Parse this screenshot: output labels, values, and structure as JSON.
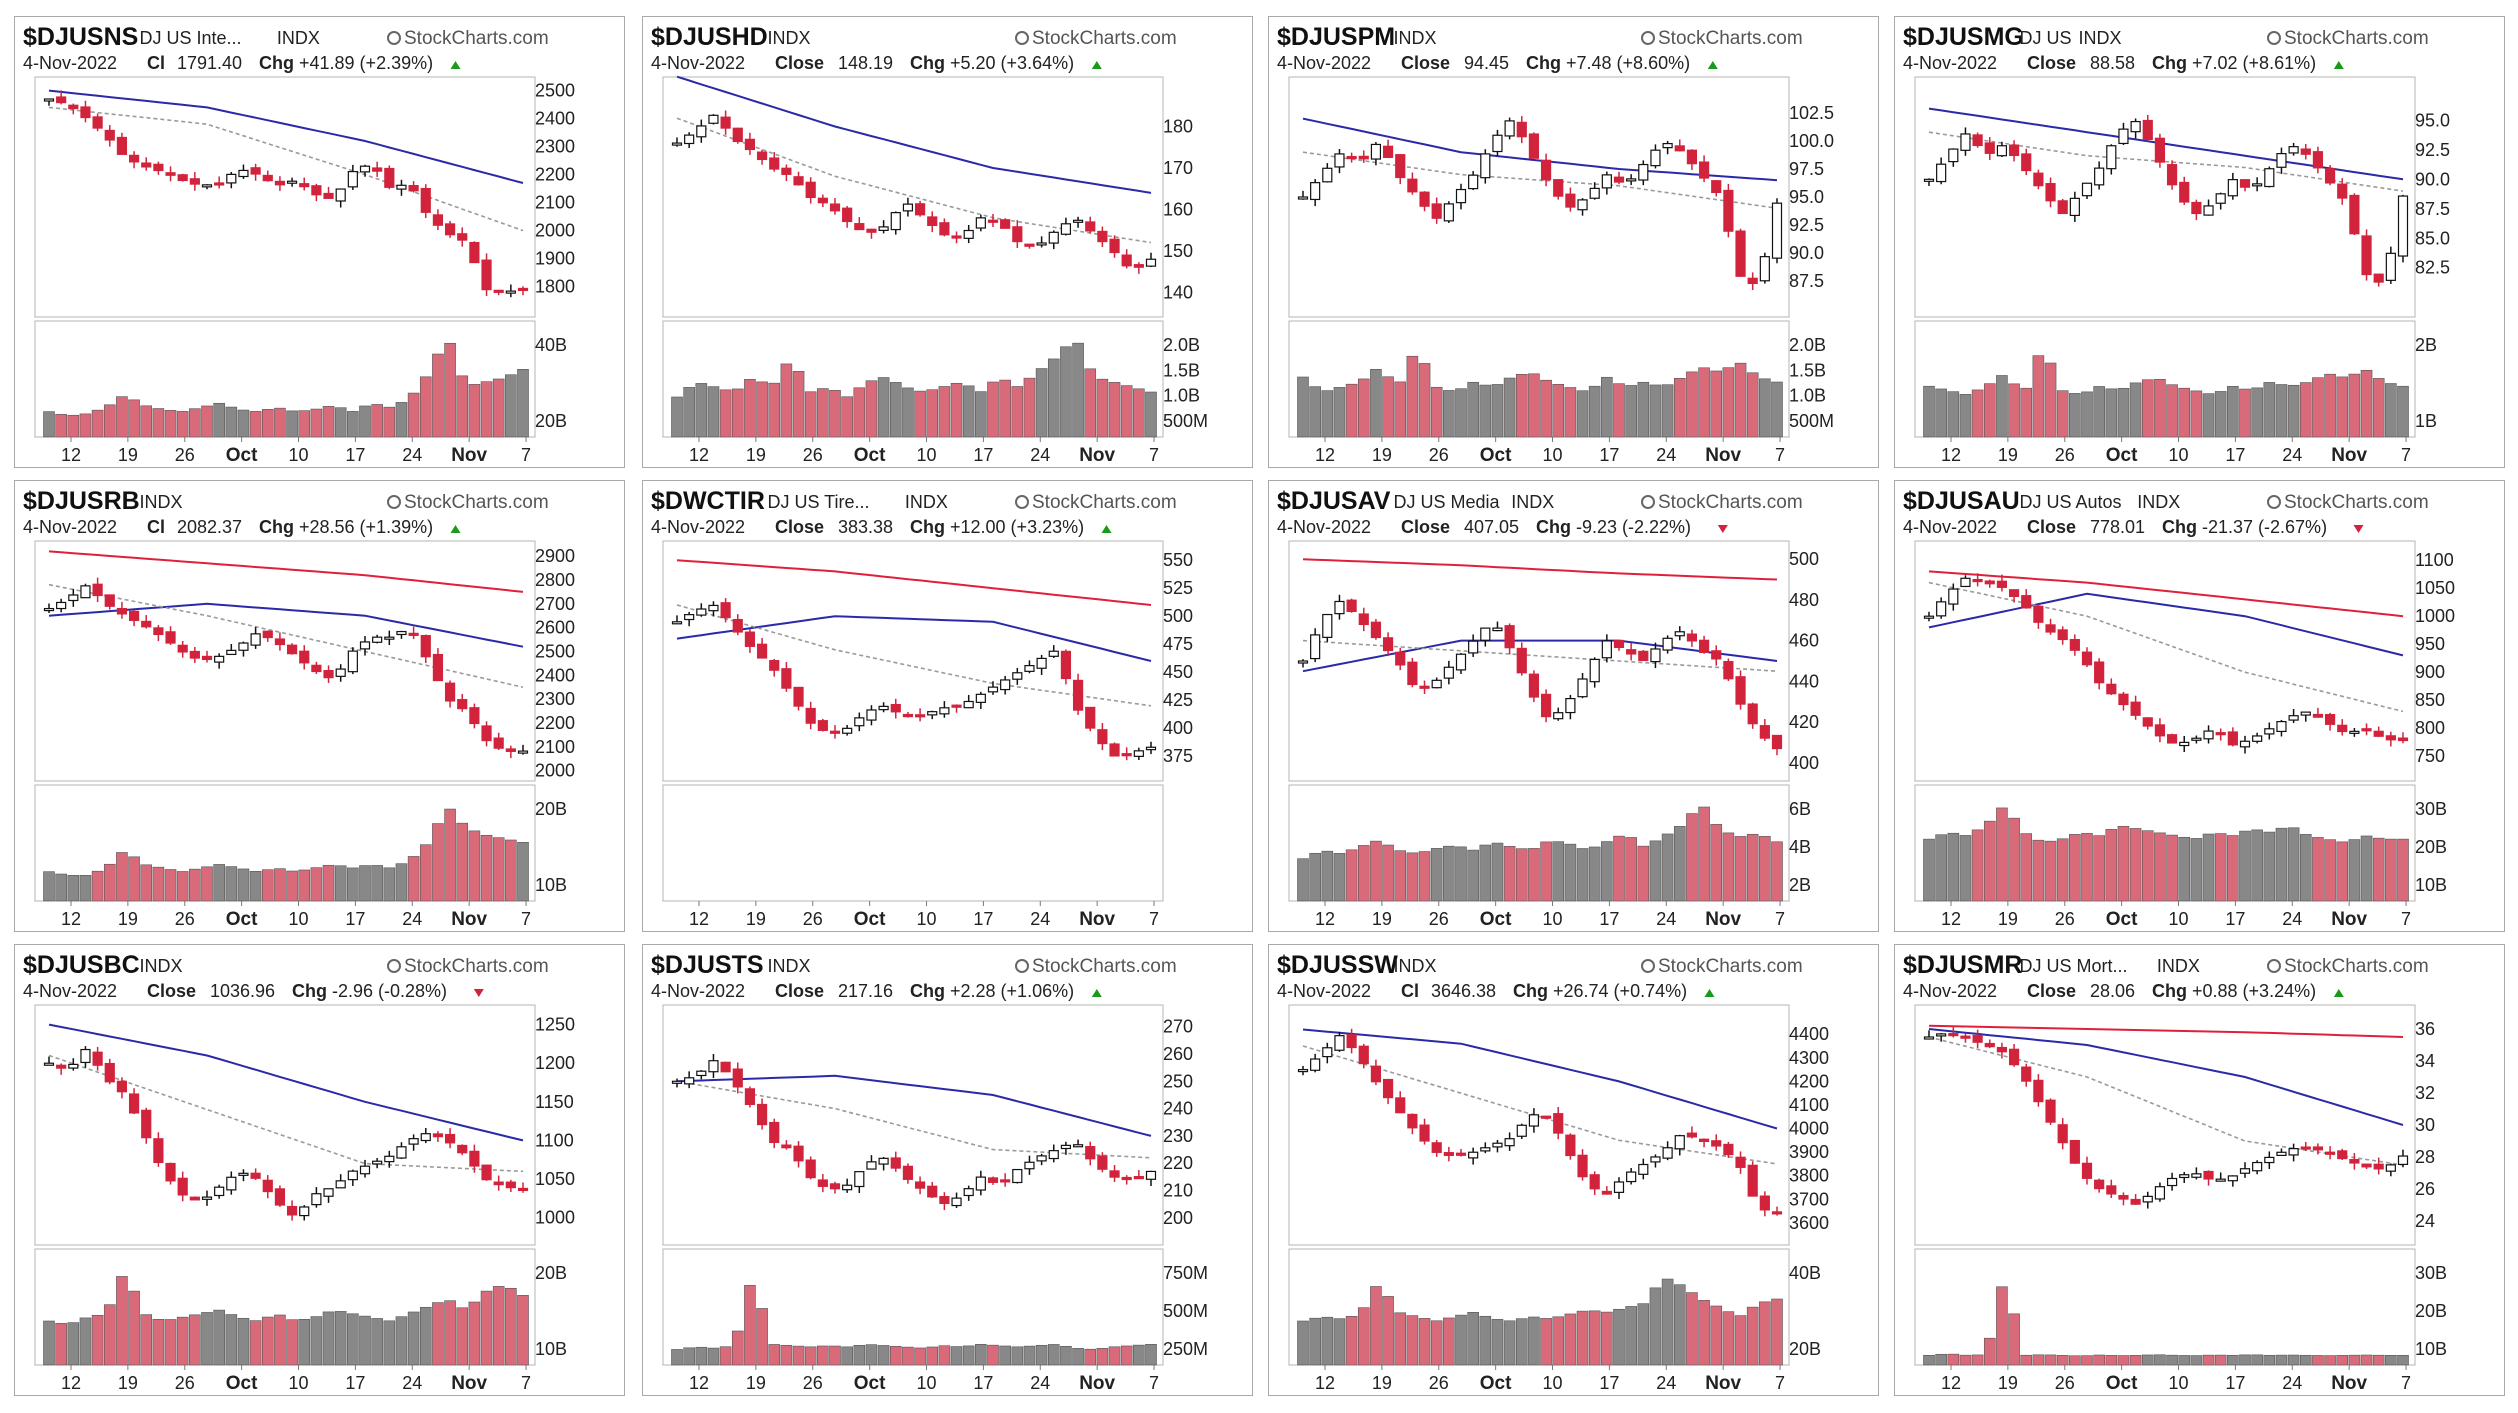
{
  "brand": "StockCharts.com",
  "colors": {
    "up": "#ffffff",
    "down": "#d2233c",
    "upVol": "#888888",
    "downVol": "#d96a7a",
    "sma50": "#2a2aa8",
    "sma200": "#e0203a",
    "ema": "#9a9a9a"
  },
  "chart_data": [
    {
      "type": "candlestick",
      "symbol": "$DJUSNS",
      "name": "DJ US Inte...",
      "exchange": "INDX",
      "date": "4-Nov-2022",
      "closeLabel": "Cl",
      "close": "1791.40",
      "change": "+41.89 (+2.39%)",
      "dir": "up",
      "ylim": [
        1720,
        2520
      ],
      "yticks": [
        "2500",
        "2400",
        "2300",
        "2200",
        "2100",
        "2000",
        "1900",
        "1800"
      ],
      "volTicks": [
        "40B",
        "20B"
      ],
      "volMax": 52,
      "xticks": [
        "12",
        "19",
        "26",
        "Oct",
        "10",
        "17",
        "24",
        "Nov",
        "7"
      ],
      "sma50": [
        2500,
        2440,
        2320,
        2170
      ],
      "sma200": null,
      "ema": [
        2440,
        2380,
        2200,
        2000
      ],
      "path": [
        2470,
        2450,
        2400,
        2340,
        2260,
        2230,
        2210,
        2180,
        2160,
        2170,
        2220,
        2200,
        2160,
        2180,
        2130,
        2110,
        2210,
        2240,
        2150,
        2170,
        2050,
        1990,
        1960,
        1790,
        1780,
        1791
      ],
      "vol": [
        12,
        10,
        11,
        14,
        20,
        15,
        13,
        12,
        14,
        16,
        13,
        12,
        14,
        12,
        13,
        15,
        12,
        16,
        14,
        18,
        30,
        48,
        24,
        26,
        28,
        32
      ]
    },
    {
      "type": "candlestick",
      "symbol": "$DJUSHD",
      "name": "",
      "exchange": "INDX",
      "date": "4-Nov-2022",
      "closeLabel": "Close",
      "close": "148.19",
      "change": "+5.20 (+3.64%)",
      "dir": "up",
      "ylim": [
        136,
        190
      ],
      "yticks": [
        "180",
        "170",
        "160",
        "150",
        "140"
      ],
      "volTicks": [
        "2.0B",
        "1.5B",
        "1.0B",
        "500M"
      ],
      "volMax": 2.2,
      "xticks": [
        "12",
        "19",
        "26",
        "Oct",
        "10",
        "17",
        "24",
        "Nov",
        "7"
      ],
      "sma50": [
        192,
        180,
        170,
        164
      ],
      "sma200": null,
      "ema": [
        182,
        168,
        158,
        152
      ],
      "path": [
        176,
        179,
        183,
        177,
        174,
        170,
        168,
        163,
        161,
        157,
        154,
        156,
        162,
        158,
        154,
        153,
        158,
        157,
        152,
        151,
        155,
        158,
        154,
        150,
        145,
        148
      ],
      "vol": [
        0.8,
        1.1,
        1.0,
        0.9,
        1.2,
        1.0,
        1.6,
        0.9,
        1.0,
        0.8,
        1.1,
        1.2,
        1.0,
        0.9,
        1.0,
        1.1,
        0.9,
        1.2,
        1.0,
        1.3,
        1.6,
        2.0,
        1.2,
        1.1,
        1.0,
        0.9
      ]
    },
    {
      "type": "candlestick",
      "symbol": "$DJUSPM",
      "name": "",
      "exchange": "INDX",
      "date": "4-Nov-2022",
      "closeLabel": "Close",
      "close": "94.45",
      "change": "+7.48 (+8.60%)",
      "dir": "up",
      "ylim": [
        85,
        105
      ],
      "yticks": [
        "102.5",
        "100.0",
        "97.5",
        "95.0",
        "92.5",
        "90.0",
        "87.5"
      ],
      "volTicks": [
        "2.0B",
        "1.5B",
        "1.0B",
        "500M"
      ],
      "volMax": 2.2,
      "xticks": [
        "12",
        "19",
        "26",
        "Oct",
        "10",
        "17",
        "24",
        "Nov",
        "7"
      ],
      "sma50": [
        102,
        99,
        97.5,
        96.5
      ],
      "sma200": null,
      "ema": [
        99,
        97,
        96,
        94
      ],
      "path": [
        95,
        97,
        99,
        98,
        100,
        97,
        95,
        93,
        95,
        97,
        100,
        102,
        99,
        96,
        94,
        95,
        97,
        96,
        98,
        100,
        99,
        97,
        95,
        88,
        87,
        94.45
      ],
      "vol": [
        1.2,
        0.9,
        1.0,
        1.1,
        1.4,
        1.0,
        1.8,
        1.0,
        0.9,
        1.1,
        1.0,
        1.2,
        1.3,
        1.1,
        1.0,
        0.9,
        1.2,
        1.0,
        1.1,
        1.0,
        1.2,
        1.4,
        1.3,
        1.5,
        1.2,
        1.1
      ]
    },
    {
      "type": "candlestick",
      "symbol": "$DJUSMG",
      "name": "DJ US",
      "exchange": "INDX",
      "date": "4-Nov-2022",
      "closeLabel": "Close",
      "close": "88.58",
      "change": "+7.02 (+8.61%)",
      "dir": "up",
      "ylim": [
        79,
        98
      ],
      "yticks": [
        "95.0",
        "92.5",
        "90.0",
        "87.5",
        "85.0",
        "82.5"
      ],
      "volTicks": [
        "2B",
        "1B"
      ],
      "volMax": 2.6,
      "xticks": [
        "12",
        "19",
        "26",
        "Oct",
        "10",
        "17",
        "24",
        "Nov",
        "7"
      ],
      "sma50": [
        96,
        94,
        92,
        90
      ],
      "sma200": null,
      "ema": [
        94,
        92,
        91,
        89
      ],
      "path": [
        90,
        92,
        94,
        92,
        93,
        91,
        89,
        87,
        89,
        91,
        94,
        95,
        92,
        89,
        87,
        88,
        90,
        89,
        91,
        93,
        92,
        90,
        88,
        82,
        81,
        88.58
      ],
      "vol": [
        1.2,
        1.1,
        1.0,
        1.2,
        1.5,
        1.0,
        2.2,
        1.1,
        1.0,
        1.2,
        1.1,
        1.3,
        1.4,
        1.2,
        1.1,
        1.0,
        1.2,
        1.1,
        1.3,
        1.2,
        1.3,
        1.5,
        1.4,
        1.6,
        1.3,
        1.2
      ]
    },
    {
      "type": "candlestick",
      "symbol": "$DJUSRB",
      "name": "",
      "exchange": "INDX",
      "date": "4-Nov-2022",
      "closeLabel": "Cl",
      "close": "2082.37",
      "change": "+28.56 (+1.39%)",
      "dir": "up",
      "ylim": [
        1990,
        2930
      ],
      "yticks": [
        "2900",
        "2800",
        "2700",
        "2600",
        "2500",
        "2400",
        "2300",
        "2200",
        "2100",
        "2000"
      ],
      "volTicks": [
        "20B",
        "10B"
      ],
      "volMax": 30,
      "xticks": [
        "12",
        "19",
        "26",
        "Oct",
        "10",
        "17",
        "24",
        "Nov",
        "7"
      ],
      "sma50": [
        2650,
        2700,
        2650,
        2520
      ],
      "sma200": [
        2920,
        2870,
        2820,
        2750
      ],
      "ema": [
        2780,
        2650,
        2500,
        2350
      ],
      "path": [
        2680,
        2720,
        2780,
        2700,
        2650,
        2610,
        2560,
        2500,
        2460,
        2480,
        2520,
        2580,
        2540,
        2480,
        2420,
        2380,
        2500,
        2560,
        2560,
        2600,
        2460,
        2300,
        2250,
        2130,
        2080,
        2082
      ],
      "vol": [
        8,
        7,
        7,
        9,
        14,
        10,
        9,
        8,
        9,
        10,
        9,
        8,
        9,
        8,
        9,
        10,
        9,
        10,
        9,
        11,
        16,
        26,
        20,
        18,
        17,
        16
      ]
    },
    {
      "type": "candlestick",
      "symbol": "$DWCTIR",
      "name": "DJ US Tire...",
      "exchange": "INDX",
      "date": "4-Nov-2022",
      "closeLabel": "Close",
      "close": "383.38",
      "change": "+12.00 (+3.23%)",
      "dir": "up",
      "ylim": [
        360,
        560
      ],
      "yticks": [
        "550",
        "525",
        "500",
        "475",
        "450",
        "425",
        "400",
        "375"
      ],
      "volTicks": [],
      "volMax": 1,
      "xticks": [
        "12",
        "19",
        "26",
        "Oct",
        "10",
        "17",
        "24",
        "Nov",
        "7"
      ],
      "sma50": [
        480,
        500,
        495,
        460
      ],
      "sma200": [
        550,
        540,
        525,
        510
      ],
      "ema": [
        510,
        470,
        440,
        420
      ],
      "path": [
        495,
        505,
        510,
        490,
        470,
        455,
        430,
        405,
        395,
        400,
        415,
        420,
        410,
        412,
        418,
        420,
        430,
        440,
        450,
        460,
        470,
        420,
        395,
        375,
        378,
        383
      ],
      "vol": []
    },
    {
      "type": "candlestick",
      "symbol": "$DJUSAV",
      "name": "DJ US Media",
      "exchange": "INDX",
      "date": "4-Nov-2022",
      "closeLabel": "Close",
      "close": "407.05",
      "change": "-9.23 (-2.22%)",
      "dir": "down",
      "ylim": [
        395,
        505
      ],
      "yticks": [
        "500",
        "480",
        "460",
        "440",
        "420",
        "400"
      ],
      "volTicks": [
        "6B",
        "4B",
        "2B"
      ],
      "volMax": 6.5,
      "xticks": [
        "12",
        "19",
        "26",
        "Oct",
        "10",
        "17",
        "24",
        "Nov",
        "7"
      ],
      "sma50": [
        445,
        460,
        460,
        450
      ],
      "sma200": [
        500,
        497,
        493,
        490
      ],
      "ema": [
        460,
        455,
        450,
        445
      ],
      "path": [
        450,
        470,
        480,
        470,
        460,
        450,
        435,
        440,
        450,
        460,
        470,
        455,
        435,
        420,
        430,
        445,
        460,
        455,
        450,
        460,
        465,
        455,
        450,
        430,
        415,
        407
      ],
      "vol": [
        2.5,
        3,
        2.8,
        3.2,
        3.6,
        3,
        2.8,
        3.1,
        3.3,
        3,
        3.5,
        3.2,
        3,
        3.6,
        3.4,
        3,
        3.5,
        4,
        3.2,
        3.8,
        4.5,
        5.8,
        4.2,
        3.8,
        4,
        3.5
      ]
    },
    {
      "type": "candlestick",
      "symbol": "$DJUSAU",
      "name": "DJ US Autos",
      "exchange": "INDX",
      "date": "4-Nov-2022",
      "closeLabel": "Close",
      "close": "778.01",
      "change": "-21.37 (-2.67%)",
      "dir": "down",
      "ylim": [
        720,
        1120
      ],
      "yticks": [
        "1100",
        "1050",
        "1000",
        "950",
        "900",
        "850",
        "800",
        "750"
      ],
      "volTicks": [
        "30B",
        "20B",
        "10B"
      ],
      "volMax": 32,
      "xticks": [
        "12",
        "19",
        "26",
        "Oct",
        "10",
        "17",
        "24",
        "Nov",
        "7"
      ],
      "sma50": [
        980,
        1040,
        1000,
        930
      ],
      "sma200": [
        1080,
        1060,
        1030,
        1000
      ],
      "ema": [
        1060,
        1000,
        900,
        830
      ],
      "path": [
        1000,
        1040,
        1070,
        1060,
        1050,
        1020,
        980,
        960,
        930,
        880,
        850,
        820,
        790,
        770,
        780,
        800,
        770,
        780,
        800,
        820,
        830,
        810,
        790,
        800,
        780,
        778
      ],
      "vol": [
        18,
        20,
        19,
        22,
        28,
        20,
        17,
        18,
        20,
        19,
        22,
        21,
        20,
        19,
        18,
        20,
        19,
        21,
        20,
        22,
        19,
        18,
        17,
        19,
        18,
        18
      ]
    },
    {
      "type": "candlestick",
      "symbol": "$DJUSBC",
      "name": "",
      "exchange": "INDX",
      "date": "4-Nov-2022",
      "closeLabel": "Close",
      "close": "1036.96",
      "change": "-2.96 (-0.28%)",
      "dir": "down",
      "ylim": [
        975,
        1265
      ],
      "yticks": [
        "1250",
        "1200",
        "1150",
        "1100",
        "1050",
        "1000"
      ],
      "volTicks": [
        "20B",
        "10B"
      ],
      "volMax": 30,
      "xticks": [
        "12",
        "19",
        "26",
        "Oct",
        "10",
        "17",
        "24",
        "Nov",
        "7"
      ],
      "sma50": [
        1250,
        1210,
        1150,
        1100
      ],
      "sma200": null,
      "ema": [
        1210,
        1140,
        1070,
        1060
      ],
      "path": [
        1200,
        1190,
        1220,
        1180,
        1160,
        1110,
        1060,
        1030,
        1020,
        1040,
        1060,
        1050,
        1020,
        1000,
        1030,
        1040,
        1060,
        1070,
        1080,
        1100,
        1110,
        1100,
        1080,
        1050,
        1040,
        1037
      ],
      "vol": [
        12,
        11,
        13,
        14,
        26,
        14,
        12,
        13,
        14,
        15,
        13,
        12,
        14,
        12,
        13,
        15,
        14,
        13,
        12,
        14,
        16,
        18,
        15,
        20,
        22,
        19
      ]
    },
    {
      "type": "candlestick",
      "symbol": "$DJUSTS",
      "name": "",
      "exchange": "INDX",
      "date": "4-Nov-2022",
      "closeLabel": "Close",
      "close": "217.16",
      "change": "+2.28 (+1.06%)",
      "dir": "up",
      "ylim": [
        193,
        275
      ],
      "yticks": [
        "270",
        "260",
        "250",
        "240",
        "230",
        "220",
        "210",
        "200"
      ],
      "volTicks": [
        "750M",
        "500M",
        "250M"
      ],
      "volMax": 850,
      "xticks": [
        "12",
        "19",
        "26",
        "Oct",
        "10",
        "17",
        "24",
        "Nov",
        "7"
      ],
      "sma50": [
        250,
        252,
        245,
        230
      ],
      "sma200": null,
      "ema": [
        250,
        240,
        225,
        222
      ],
      "path": [
        250,
        252,
        258,
        250,
        240,
        228,
        225,
        215,
        210,
        212,
        220,
        222,
        215,
        210,
        205,
        208,
        215,
        212,
        218,
        222,
        225,
        228,
        220,
        215,
        214,
        217
      ],
      "vol": [
        120,
        140,
        130,
        150,
        700,
        160,
        150,
        140,
        150,
        140,
        160,
        150,
        140,
        130,
        150,
        140,
        160,
        150,
        140,
        150,
        160,
        130,
        120,
        140,
        150,
        160
      ]
    },
    {
      "type": "candlestick",
      "symbol": "$DJUSSW",
      "name": "",
      "exchange": "INDX",
      "date": "4-Nov-2022",
      "closeLabel": "Cl",
      "close": "3646.38",
      "change": "+26.74 (+0.74%)",
      "dir": "up",
      "ylim": [
        3540,
        4490
      ],
      "yticks": [
        "4400",
        "4300",
        "4200",
        "4100",
        "4000",
        "3900",
        "3800",
        "3700",
        "3600"
      ],
      "volTicks": [
        "40B",
        "20B"
      ],
      "volMax": 50,
      "xticks": [
        "12",
        "19",
        "26",
        "Oct",
        "10",
        "17",
        "24",
        "Nov",
        "7"
      ],
      "sma50": [
        4420,
        4360,
        4200,
        4000
      ],
      "sma200": null,
      "ema": [
        4350,
        4150,
        3950,
        3850
      ],
      "path": [
        4250,
        4320,
        4400,
        4300,
        4180,
        4080,
        3980,
        3900,
        3880,
        3900,
        3930,
        3960,
        4060,
        4050,
        3900,
        3760,
        3720,
        3800,
        3850,
        3900,
        3980,
        3950,
        3920,
        3850,
        3660,
        3646
      ],
      "vol": [
        20,
        22,
        21,
        23,
        38,
        24,
        22,
        20,
        22,
        24,
        21,
        20,
        22,
        21,
        23,
        25,
        24,
        26,
        28,
        40,
        36,
        30,
        26,
        22,
        28,
        30
      ]
    },
    {
      "type": "candlestick",
      "symbol": "$DJUSMR",
      "name": "DJ US Mort...",
      "exchange": "INDX",
      "date": "4-Nov-2022",
      "closeLabel": "Close",
      "close": "28.06",
      "change": "+0.88 (+3.24%)",
      "dir": "up",
      "ylim": [
        23,
        37
      ],
      "yticks": [
        "36",
        "34",
        "32",
        "30",
        "28",
        "26",
        "24"
      ],
      "volTicks": [
        "30B",
        "20B",
        "10B"
      ],
      "volMax": 34,
      "xticks": [
        "12",
        "19",
        "26",
        "Oct",
        "10",
        "17",
        "24",
        "Nov",
        "7"
      ],
      "sma50": [
        36,
        35,
        33,
        30
      ],
      "sma200": [
        36.2,
        36,
        35.8,
        35.5
      ],
      "ema": [
        35.5,
        33,
        29,
        27.5
      ],
      "path": [
        35.5,
        35.8,
        35.4,
        35,
        34.5,
        33,
        31,
        29,
        27,
        26,
        25.5,
        25,
        26,
        26.8,
        27,
        26.5,
        26.8,
        27.5,
        28,
        28.5,
        28.6,
        28.3,
        27.8,
        27.4,
        27.2,
        28.06
      ],
      "vol": [
        3,
        3.5,
        3,
        3.2,
        28,
        3,
        3.2,
        3,
        2.8,
        3.1,
        2.9,
        3,
        3.2,
        3,
        2.9,
        3.1,
        3,
        3.2,
        3,
        3.1,
        3,
        2.9,
        3,
        3.1,
        3,
        3
      ]
    }
  ]
}
